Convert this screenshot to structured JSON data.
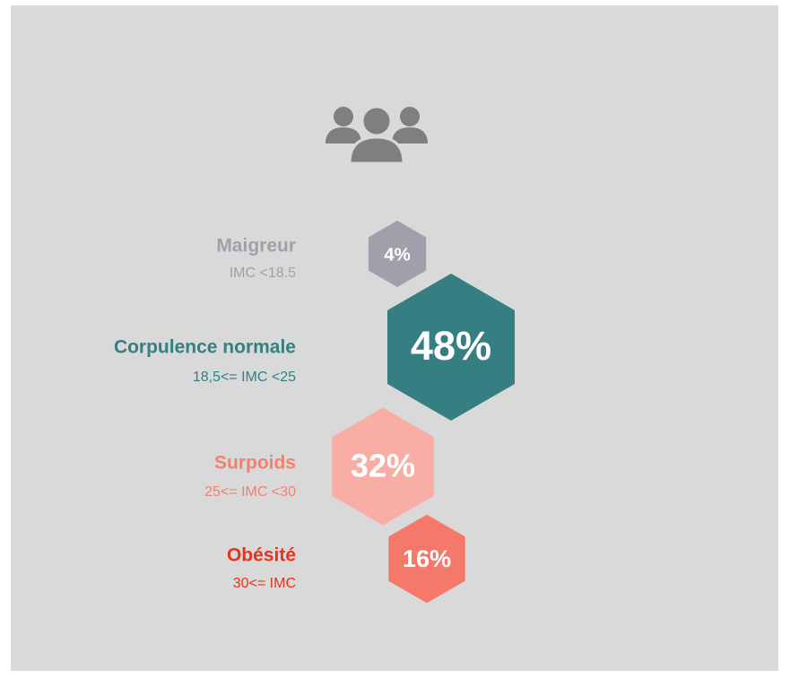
{
  "chart_data": {
    "type": "hexagon",
    "categories": [
      "Maigreur",
      "Corpulence normale",
      "Surpoids",
      "Obésité"
    ],
    "subtitles": [
      "IMC <18.5",
      "18,5<= IMC <25",
      "25<= IMC <30",
      "30<= IMC"
    ],
    "values": [
      4,
      48,
      32,
      16
    ],
    "value_labels": [
      "4%",
      "48%",
      "32%",
      "16%"
    ],
    "colors": [
      "#a29fab",
      "#357f83",
      "#f9aea5",
      "#f4796b"
    ],
    "label_colors": [
      "#a29fab",
      "#357f83",
      "#f0826f",
      "#e8311a"
    ]
  }
}
